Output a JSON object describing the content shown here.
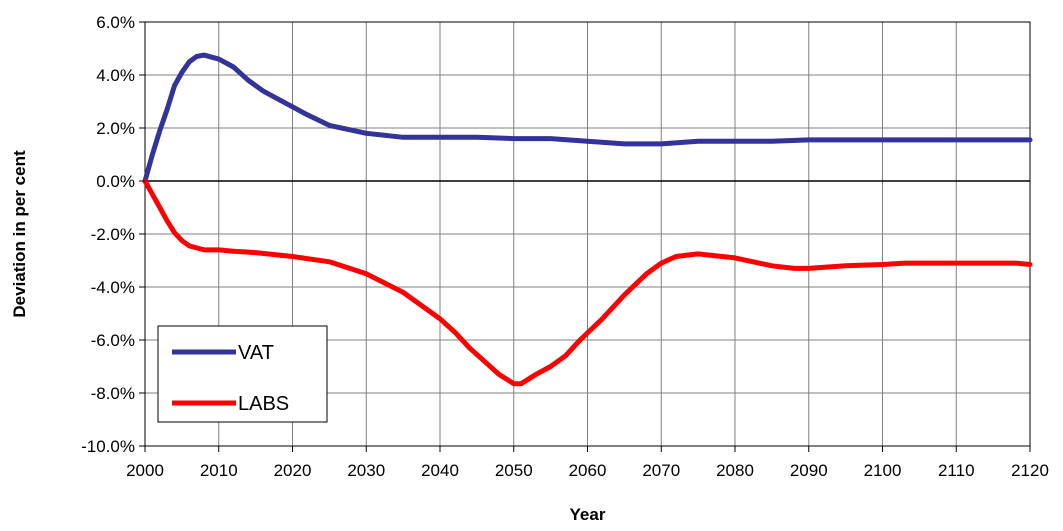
{
  "chart_data": {
    "type": "line",
    "title": "",
    "xlabel": "Year",
    "ylabel": "Deviation in per cent",
    "xlim": [
      2000,
      2120
    ],
    "ylim": [
      -10,
      6
    ],
    "x_ticks": [
      "2000",
      "2010",
      "2020",
      "2030",
      "2040",
      "2050",
      "2060",
      "2070",
      "2080",
      "2090",
      "2100",
      "2110",
      "2120"
    ],
    "y_ticks": [
      "6.0%",
      "4.0%",
      "2.0%",
      "0.0%",
      "-2.0%",
      "-4.0%",
      "-6.0%",
      "-8.0%",
      "-10.0%"
    ],
    "grid": true,
    "legend_position": "bottom-left",
    "series": [
      {
        "name": "VAT",
        "color": "#333399",
        "points": [
          [
            2000,
            0.0
          ],
          [
            2001,
            1.0
          ],
          [
            2002,
            1.9
          ],
          [
            2003,
            2.7
          ],
          [
            2004,
            3.6
          ],
          [
            2005,
            4.1
          ],
          [
            2006,
            4.5
          ],
          [
            2007,
            4.7
          ],
          [
            2008,
            4.75
          ],
          [
            2010,
            4.6
          ],
          [
            2012,
            4.3
          ],
          [
            2014,
            3.8
          ],
          [
            2016,
            3.4
          ],
          [
            2018,
            3.1
          ],
          [
            2020,
            2.8
          ],
          [
            2022,
            2.5
          ],
          [
            2025,
            2.1
          ],
          [
            2030,
            1.8
          ],
          [
            2035,
            1.65
          ],
          [
            2040,
            1.65
          ],
          [
            2045,
            1.65
          ],
          [
            2050,
            1.6
          ],
          [
            2055,
            1.6
          ],
          [
            2060,
            1.5
          ],
          [
            2065,
            1.4
          ],
          [
            2070,
            1.4
          ],
          [
            2075,
            1.5
          ],
          [
            2080,
            1.5
          ],
          [
            2085,
            1.5
          ],
          [
            2090,
            1.55
          ],
          [
            2100,
            1.55
          ],
          [
            2110,
            1.55
          ],
          [
            2120,
            1.55
          ]
        ]
      },
      {
        "name": "LABS",
        "color": "#ff0000",
        "points": [
          [
            2000,
            0.0
          ],
          [
            2001,
            -0.5
          ],
          [
            2002,
            -1.0
          ],
          [
            2003,
            -1.5
          ],
          [
            2004,
            -1.95
          ],
          [
            2005,
            -2.25
          ],
          [
            2006,
            -2.45
          ],
          [
            2008,
            -2.6
          ],
          [
            2010,
            -2.6
          ],
          [
            2012,
            -2.65
          ],
          [
            2015,
            -2.7
          ],
          [
            2020,
            -2.85
          ],
          [
            2025,
            -3.05
          ],
          [
            2030,
            -3.5
          ],
          [
            2035,
            -4.2
          ],
          [
            2040,
            -5.2
          ],
          [
            2042,
            -5.7
          ],
          [
            2044,
            -6.3
          ],
          [
            2046,
            -6.8
          ],
          [
            2048,
            -7.3
          ],
          [
            2050,
            -7.65
          ],
          [
            2051,
            -7.65
          ],
          [
            2053,
            -7.3
          ],
          [
            2055,
            -7.0
          ],
          [
            2057,
            -6.6
          ],
          [
            2059,
            -6.0
          ],
          [
            2062,
            -5.2
          ],
          [
            2065,
            -4.3
          ],
          [
            2068,
            -3.5
          ],
          [
            2070,
            -3.1
          ],
          [
            2072,
            -2.85
          ],
          [
            2075,
            -2.75
          ],
          [
            2080,
            -2.9
          ],
          [
            2085,
            -3.2
          ],
          [
            2088,
            -3.3
          ],
          [
            2090,
            -3.3
          ],
          [
            2095,
            -3.2
          ],
          [
            2100,
            -3.15
          ],
          [
            2103,
            -3.1
          ],
          [
            2110,
            -3.1
          ],
          [
            2118,
            -3.1
          ],
          [
            2120,
            -3.15
          ]
        ]
      }
    ]
  }
}
